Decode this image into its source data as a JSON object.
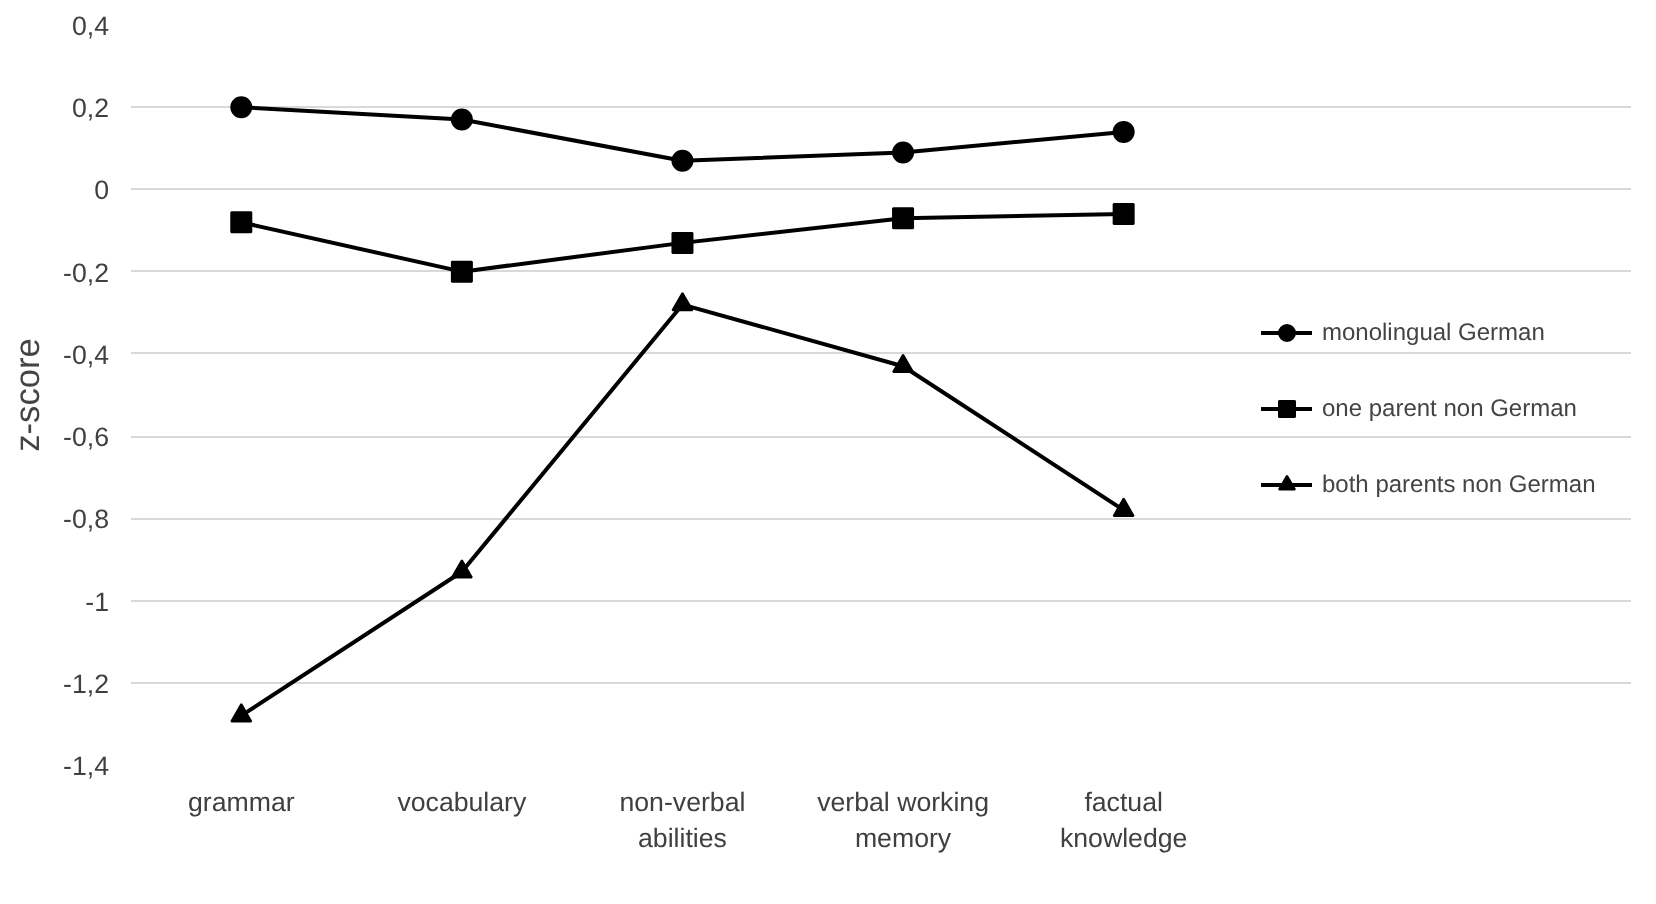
{
  "chart_data": {
    "type": "line",
    "ylabel": "z-score",
    "categories": [
      "grammar",
      "vocabulary",
      "non-verbal abilities",
      "verbal working memory",
      "factual knowledge"
    ],
    "series": [
      {
        "name": "monolingual German",
        "color": "#000000",
        "marker": "circle",
        "values": [
          0.2,
          0.17,
          0.07,
          0.09,
          0.14
        ]
      },
      {
        "name": "one parent non German",
        "color": "#000000",
        "marker": "square",
        "values": [
          -0.08,
          -0.2,
          -0.13,
          -0.07,
          -0.06
        ]
      },
      {
        "name": "both parents non German",
        "color": "#000000",
        "marker": "triangle",
        "values": [
          -1.28,
          -0.93,
          -0.28,
          -0.43,
          -0.78
        ]
      }
    ],
    "ylim": [
      -1.4,
      0.4
    ],
    "yticks": [
      {
        "value": -1.4,
        "label": "-1,4"
      },
      {
        "value": -1.2,
        "label": "-1,2"
      },
      {
        "value": -1,
        "label": "-1"
      },
      {
        "value": -0.8,
        "label": "-0,8"
      },
      {
        "value": -0.6,
        "label": "-0,6"
      },
      {
        "value": -0.4,
        "label": "-0,4"
      },
      {
        "value": -0.2,
        "label": "-0,2"
      },
      {
        "value": 0,
        "label": "0"
      },
      {
        "value": 0.2,
        "label": "0,2"
      },
      {
        "value": 0.4,
        "label": "0,4"
      }
    ],
    "grid": "y",
    "legend": "right",
    "line_style": "solid"
  }
}
